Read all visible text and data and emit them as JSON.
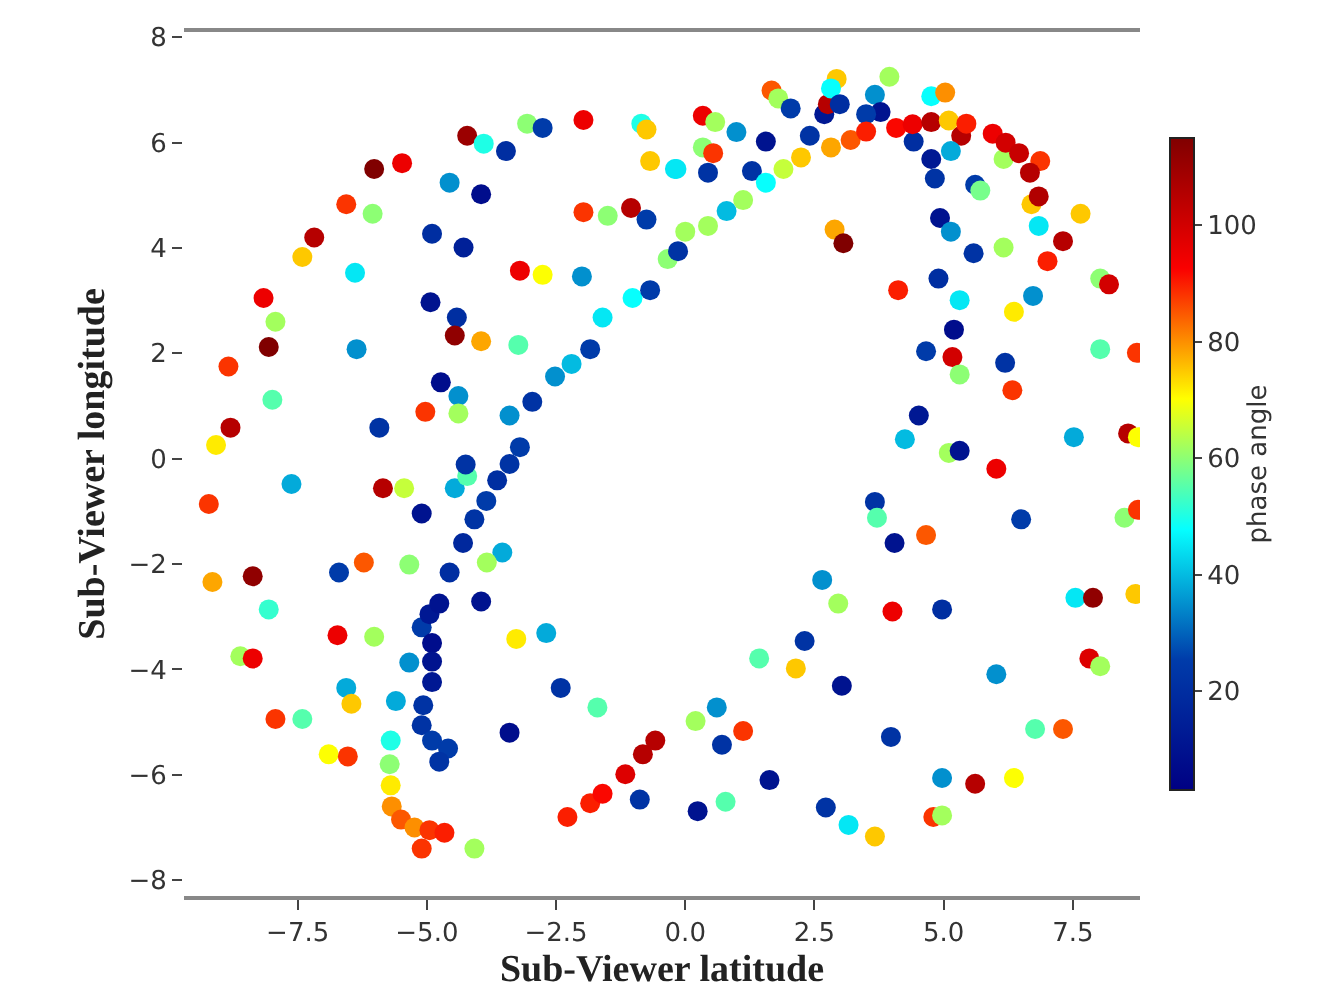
{
  "chart_data": {
    "type": "scatter",
    "xlabel": "Sub-Viewer latitude",
    "ylabel": "Sub-Viewer longitude",
    "clabel": "phase angle",
    "xlim": [
      -9.7,
      8.8
    ],
    "ylim": [
      -8.3,
      8.1
    ],
    "xticks": [
      {
        "value": -7.5,
        "label": "−7.5"
      },
      {
        "value": -5,
        "label": "−5.0"
      },
      {
        "value": -2.5,
        "label": "−2.5"
      },
      {
        "value": 0,
        "label": "0.0"
      },
      {
        "value": 2.5,
        "label": "2.5"
      },
      {
        "value": 5,
        "label": "5.0"
      },
      {
        "value": 7.5,
        "label": "7.5"
      }
    ],
    "yticks": [
      {
        "value": -8,
        "label": "−8"
      },
      {
        "value": -6,
        "label": "−6"
      },
      {
        "value": -4,
        "label": "−4"
      },
      {
        "value": -2,
        "label": "−2"
      },
      0,
      2,
      4,
      6,
      8
    ],
    "clim": [
      3,
      115
    ],
    "cticks": [
      20,
      40,
      60,
      80,
      100
    ],
    "series": [
      {
        "x": [
          -4.22,
          -3.9,
          -3.47,
          -3.06,
          -2.76,
          -1.97,
          -0.85,
          -0.75,
          -0.68,
          -0.2,
          -6.02,
          -5.48,
          -4.56,
          -3.95,
          -6.56,
          -6.05,
          -7.18,
          -7.41,
          -4.9,
          -4.29,
          -6.39,
          -3.2,
          -2.76,
          -2.0,
          -1.97,
          -1.5,
          -1.05,
          -0.75,
          -8.16,
          -7.93,
          -8.06,
          -8.84,
          -7.99,
          -8.8,
          -9.08,
          -6.36,
          -4.93,
          -4.42,
          -4.46,
          -3.95,
          -3.23,
          -4.73,
          -4.39,
          -4.39,
          -5.03,
          -5.92,
          -3.4,
          0.34,
          0.58,
          0.99,
          1.56,
          0.34,
          0.54,
          0.44,
          -0.17,
          1.29,
          1.67,
          1.8,
          2.04,
          2.41,
          2.69,
          2.76,
          2.93,
          2.82,
          2.99,
          3.67,
          3.95,
          3.78,
          3.5,
          4.76,
          5.03,
          4.42,
          5.34,
          5.14,
          4.76,
          4.83,
          5.61,
          5.71,
          6.16,
          6.87,
          4.93,
          5.14,
          5.58,
          6.16,
          6.7,
          6.84,
          7.31,
          7.01,
          7.65,
          8.03,
          8.2,
          2.89,
          3.06,
          4.12,
          4.9,
          5.31,
          5.2,
          4.66,
          5.17,
          5.31,
          6.19,
          6.33,
          6.73,
          6.36,
          8.03,
          8.74,
          4.52,
          4.25,
          7.52,
          8.57,
          8.76,
          5.1,
          5.31,
          6.02,
          3.67,
          3.71,
          4.05,
          4.66,
          6.5,
          8.5,
          8.76,
          2.65,
          2.96,
          4.01,
          4.97,
          7.55,
          7.89,
          8.71,
          2.31,
          1.43,
          2.14,
          3.03,
          6.02,
          7.82,
          8.03,
          0.61,
          0.2,
          1.12,
          0.71,
          3.98,
          6.77,
          7.31,
          1.63,
          4.97,
          5.61,
          6.36,
          0.24,
          0.78,
          2.72,
          3.16,
          3.67,
          4.8,
          4.97,
          -7.62,
          -9.22,
          -5.85,
          -5.44,
          -5.1,
          -4.46,
          -4.22,
          -4.25,
          -9.15,
          -8.37,
          -8.06,
          -6.7,
          -6.22,
          -5.34,
          -3.54,
          -3.84,
          -3.95,
          -8.61,
          -8.37,
          -6.73,
          -6.02,
          -3.27,
          -2.69,
          -6.56,
          -6.46,
          -7.93,
          -7.41,
          -2.41,
          -1.7,
          -3.4,
          -6.9,
          -6.53,
          -0.88,
          -5.7,
          -5.72,
          -5.7,
          -5.68,
          -5.5,
          -5.24,
          -4.95,
          -4.66,
          -4.08,
          -5.1,
          -5.6,
          -5.34,
          -5.1,
          -4.95,
          -4.76,
          -4.56,
          -4.3,
          -4.08,
          -3.85,
          -3.64,
          -3.4,
          -3.2,
          -4.9,
          -4.9,
          -4.9,
          -5.07,
          -5.1,
          -4.9,
          -4.59,
          -4.76,
          -2.28,
          -1.84,
          -1.6,
          -1.16,
          -0.82,
          -0.58,
          -2.96,
          -2.52,
          -2.2,
          -1.84,
          -1.6,
          -1.02,
          -0.68,
          -0.34,
          0.0,
          -0.14,
          0.44,
          0.8,
          1.12,
          1.56,
          1.9,
          2.24,
          2.82,
          3.2,
          3.5,
          4.08,
          4.4,
          4.76,
          5.1,
          5.44,
          5.95,
          6.2,
          6.46,
          6.67,
          6.84
        ],
        "values": [
          6.13,
          5.98,
          5.84,
          6.36,
          6.28,
          6.43,
          6.36,
          6.25,
          5.65,
          5.5,
          5.5,
          5.61,
          5.24,
          5.02,
          4.83,
          4.65,
          4.2,
          3.83,
          4.27,
          4.01,
          3.53,
          3.57,
          3.49,
          3.46,
          4.68,
          4.61,
          4.76,
          4.54,
          3.05,
          2.6,
          2.12,
          1.75,
          1.12,
          0.59,
          0.26,
          2.08,
          2.97,
          2.68,
          2.34,
          2.23,
          2.16,
          1.45,
          1.19,
          0.86,
          0.89,
          0.59,
          0.82,
          6.51,
          6.39,
          6.2,
          6.02,
          5.91,
          5.8,
          5.43,
          5.5,
          5.46,
          6.99,
          6.84,
          6.65,
          6.13,
          6.54,
          6.73,
          7.21,
          7.03,
          6.73,
          6.91,
          7.25,
          6.58,
          6.54,
          6.88,
          6.95,
          6.02,
          6.13,
          5.84,
          5.69,
          5.32,
          5.2,
          5.09,
          5.69,
          5.65,
          4.57,
          4.31,
          3.9,
          4.01,
          4.83,
          4.42,
          4.13,
          3.75,
          4.65,
          3.42,
          3.31,
          4.35,
          4.09,
          3.2,
          3.42,
          3.01,
          2.45,
          2.04,
          1.93,
          1.6,
          1.82,
          1.3,
          3.09,
          2.79,
          2.08,
          2.01,
          0.82,
          0.37,
          0.41,
          0.48,
          0.41,
          0.11,
          0.15,
          -0.19,
          -0.82,
          -1.12,
          -1.6,
          -1.45,
          -1.15,
          -1.12,
          -0.97,
          -2.3,
          -2.75,
          -2.9,
          -2.86,
          -2.64,
          -2.64,
          -2.57,
          -3.46,
          -3.79,
          -3.98,
          -4.31,
          -4.09,
          -3.79,
          -3.94,
          -4.72,
          -4.98,
          -5.17,
          -5.43,
          -5.28,
          -5.13,
          -5.13,
          -6.1,
          -6.06,
          -6.17,
          -6.06,
          -6.69,
          -6.51,
          -6.62,
          -6.95,
          -7.17,
          -6.8,
          -6.77,
          -0.48,
          -0.86,
          -0.56,
          -0.56,
          -1.04,
          -0.56,
          -0.33,
          -0.11,
          -2.34,
          -2.23,
          -2.86,
          -2.16,
          -1.97,
          -2.01,
          -1.78,
          -1.97,
          -2.71,
          -3.75,
          -3.79,
          -3.35,
          -3.38,
          -3.42,
          -3.31,
          -4.35,
          -4.65,
          -4.94,
          -4.94,
          -4.35,
          -4.72,
          -5.2,
          -5.61,
          -5.65,
          -6.47,
          -5.35,
          -5.8,
          -6.2,
          -6.6,
          -6.85,
          -7.0,
          -7.05,
          -7.1,
          -7.4,
          -7.4,
          -4.6,
          -3.87,
          -3.2,
          -2.95,
          -2.75,
          -2.16,
          -1.6,
          -1.15,
          -0.8,
          -0.41,
          -0.1,
          0.22,
          -3.5,
          -3.85,
          -4.24,
          -4.68,
          -5.06,
          -5.35,
          -5.5,
          -5.75,
          -6.8,
          -6.54,
          -6.36,
          -5.99,
          -5.61,
          -5.35,
          1.08,
          1.56,
          1.8,
          2.08,
          2.68,
          3.05,
          3.2,
          3.79,
          4.31,
          3.94,
          4.42,
          4.7,
          4.91,
          5.24,
          5.5,
          5.72,
          5.91,
          6.05,
          6.21,
          6.28,
          6.35,
          6.39,
          6.42,
          6.36,
          6.17,
          6.0,
          5.8,
          5.43,
          4.98
        ],
        "cvalues": [
          110,
          50,
          20,
          60,
          25,
          95,
          50,
          75,
          75,
          45,
          115,
          95,
          35,
          8,
          88,
          60,
          105,
          75,
          20,
          15,
          45,
          95,
          70,
          35,
          88,
          60,
          105,
          25,
          95,
          62,
          115,
          88,
          55,
          105,
          72,
          35,
          10,
          20,
          112,
          78,
          55,
          8,
          35,
          62,
          88,
          22,
          35,
          95,
          62,
          35,
          10,
          60,
          88,
          22,
          45,
          22,
          85,
          62,
          25,
          22,
          12,
          105,
          75,
          48,
          20,
          35,
          62,
          10,
          25,
          48,
          80,
          20,
          105,
          38,
          12,
          22,
          25,
          58,
          62,
          88,
          10,
          35,
          22,
          62,
          75,
          45,
          105,
          90,
          75,
          60,
          100,
          78,
          115,
          90,
          20,
          45,
          8,
          25,
          100,
          60,
          22,
          88,
          35,
          72,
          55,
          88,
          12,
          40,
          38,
          105,
          70,
          62,
          10,
          95,
          22,
          55,
          10,
          85,
          25,
          60,
          88,
          35,
          62,
          95,
          20,
          45,
          112,
          75,
          22,
          55,
          75,
          10,
          35,
          98,
          62,
          35,
          62,
          88,
          22,
          22,
          55,
          85,
          10,
          35,
          105,
          70,
          10,
          55,
          22,
          45,
          75,
          88,
          62,
          38,
          88,
          105,
          65,
          10,
          38,
          55,
          22,
          78,
          112,
          52,
          25,
          85,
          60,
          38,
          62,
          10,
          62,
          95,
          95,
          62,
          72,
          38,
          38,
          75,
          88,
          55,
          22,
          55,
          8,
          70,
          88,
          22,
          50,
          60,
          72,
          80,
          85,
          80,
          88,
          90,
          62,
          88,
          38,
          35,
          25,
          12,
          10,
          20,
          18,
          22,
          25,
          20,
          22,
          25,
          8,
          10,
          12,
          22,
          22,
          25,
          25,
          22,
          90,
          90,
          92,
          98,
          105,
          105,
          22,
          35,
          40,
          25,
          45,
          48,
          25,
          60,
          62,
          22,
          62,
          40,
          62,
          48,
          65,
          75,
          78,
          85,
          90,
          92,
          95,
          105,
          75,
          90,
          95,
          100,
          102,
          105,
          106
        ]
      }
    ]
  }
}
